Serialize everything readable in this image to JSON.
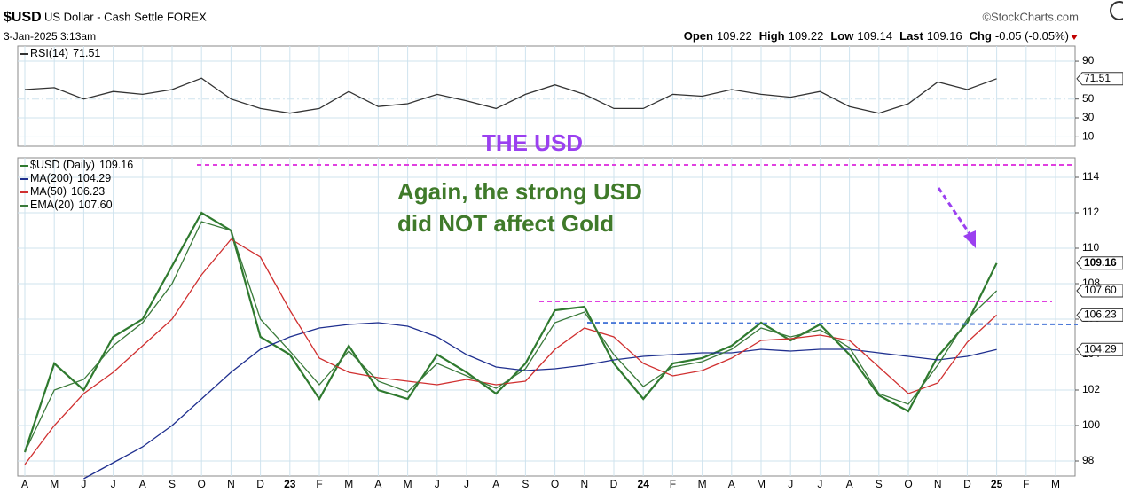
{
  "header": {
    "symbol": "$USD",
    "name": "US Dollar - Cash Settle FOREX",
    "date": "3-Jan-2025 3:13am",
    "source": "©StockCharts.com",
    "quote": [
      {
        "label": "Open",
        "value": "109.22"
      },
      {
        "label": "High",
        "value": "109.22"
      },
      {
        "label": "Low",
        "value": "109.14"
      },
      {
        "label": "Last",
        "value": "109.16"
      },
      {
        "label": "Chg",
        "value": "-0.05 (-0.05%)"
      }
    ]
  },
  "chart_data": [
    {
      "type": "line",
      "panel": "rsi",
      "categories": [
        "A",
        "M",
        "J",
        "J",
        "A",
        "S",
        "O",
        "N",
        "D",
        "23",
        "F",
        "M",
        "A",
        "M",
        "J",
        "J",
        "A",
        "S",
        "O",
        "N",
        "D",
        "24",
        "F",
        "M",
        "A",
        "M",
        "J",
        "J",
        "A",
        "S",
        "O",
        "N",
        "D",
        "25",
        "F",
        "M"
      ],
      "series": [
        {
          "name": "RSI(14)",
          "color": "#333333",
          "values": [
            60,
            62,
            50,
            58,
            55,
            60,
            72,
            50,
            40,
            35,
            40,
            58,
            42,
            45,
            55,
            48,
            40,
            55,
            65,
            55,
            40,
            40,
            55,
            53,
            60,
            55,
            52,
            58,
            42,
            35,
            45,
            68,
            60,
            71.51,
            null,
            null
          ],
          "value_labels": [
            null,
            null,
            null,
            null,
            null,
            null,
            null,
            null,
            null,
            null,
            null,
            null,
            null,
            null,
            null,
            null,
            null,
            null,
            null,
            null,
            null,
            null,
            null,
            null,
            null,
            null,
            null,
            null,
            null,
            null,
            null,
            null,
            null,
            "71.51",
            null,
            null
          ]
        }
      ],
      "ylim": [
        0,
        106
      ],
      "yticks": [
        10,
        30,
        50,
        90
      ],
      "grid": true
    },
    {
      "type": "line",
      "panel": "price",
      "title": "THE USD",
      "annotations": [
        "Again, the strong USD",
        "did NOT affect Gold"
      ],
      "categories": [
        "A",
        "M",
        "J",
        "J",
        "A",
        "S",
        "O",
        "N",
        "D",
        "23",
        "F",
        "M",
        "A",
        "M",
        "J",
        "J",
        "A",
        "S",
        "O",
        "N",
        "D",
        "24",
        "F",
        "M",
        "A",
        "M",
        "J",
        "J",
        "A",
        "S",
        "O",
        "N",
        "D",
        "25",
        "F",
        "M"
      ],
      "series": [
        {
          "name": "$USD (Daily)",
          "color": "#2f7a2f",
          "values": [
            98.5,
            103.5,
            102,
            105,
            106,
            109,
            112,
            111,
            105,
            104,
            101.5,
            104.5,
            102,
            101.5,
            104,
            103,
            101.8,
            103.5,
            106.5,
            106.7,
            103.5,
            101.5,
            103.5,
            103.8,
            104.5,
            105.8,
            104.8,
            105.7,
            104,
            101.7,
            100.8,
            103.9,
            105.8,
            109.16,
            null,
            null
          ],
          "value_labels": [
            null,
            null,
            null,
            null,
            null,
            null,
            null,
            null,
            null,
            null,
            null,
            null,
            null,
            null,
            null,
            null,
            null,
            null,
            null,
            null,
            null,
            null,
            null,
            null,
            null,
            null,
            null,
            null,
            null,
            null,
            null,
            null,
            null,
            "109.16",
            null,
            null
          ]
        },
        {
          "name": "MA(200)",
          "color": "#1f2f8f",
          "values": [
            null,
            null,
            97,
            97.9,
            98.8,
            100,
            101.5,
            103,
            104.3,
            105,
            105.5,
            105.7,
            105.8,
            105.6,
            105,
            104,
            103.3,
            103.1,
            103.2,
            103.4,
            103.7,
            103.9,
            104,
            104.1,
            104.1,
            104.3,
            104.2,
            104.3,
            104.3,
            104.1,
            103.9,
            103.7,
            103.9,
            104.29,
            null,
            null
          ],
          "value_labels": [
            null,
            null,
            null,
            null,
            null,
            null,
            null,
            null,
            null,
            null,
            null,
            null,
            null,
            null,
            null,
            null,
            null,
            null,
            null,
            null,
            null,
            null,
            null,
            null,
            null,
            null,
            null,
            null,
            null,
            null,
            null,
            null,
            null,
            "104.29",
            null,
            null
          ]
        },
        {
          "name": "MA(50)",
          "color": "#d03030",
          "values": [
            97.8,
            100,
            101.8,
            103,
            104.5,
            106,
            108.5,
            110.5,
            109.5,
            106.5,
            103.8,
            103,
            102.7,
            102.5,
            102.3,
            102.6,
            102.3,
            102.5,
            104.3,
            105.5,
            105,
            103.5,
            102.8,
            103.1,
            103.8,
            104.8,
            104.9,
            105.1,
            104.8,
            103.3,
            101.8,
            102.4,
            104.7,
            106.23,
            null,
            null
          ],
          "value_labels": [
            null,
            null,
            null,
            null,
            null,
            null,
            null,
            null,
            null,
            null,
            null,
            null,
            null,
            null,
            null,
            null,
            null,
            null,
            null,
            null,
            null,
            null,
            null,
            null,
            null,
            null,
            null,
            null,
            null,
            null,
            null,
            null,
            null,
            "106.23",
            null,
            null
          ]
        },
        {
          "name": "EMA(20)",
          "color": "#3a7a3a",
          "values": [
            98.5,
            102,
            102.6,
            104.5,
            105.8,
            108,
            111.5,
            111,
            106,
            104.2,
            102.3,
            104.2,
            102.5,
            101.9,
            103.5,
            102.8,
            102.1,
            103.2,
            105.8,
            106.4,
            104,
            102.2,
            103.3,
            103.6,
            104.3,
            105.5,
            105,
            105.4,
            104.4,
            101.8,
            101.2,
            103.4,
            106,
            107.6,
            null,
            null
          ],
          "value_labels": [
            null,
            null,
            null,
            null,
            null,
            null,
            null,
            null,
            null,
            null,
            null,
            null,
            null,
            null,
            null,
            null,
            null,
            null,
            null,
            null,
            null,
            null,
            null,
            null,
            null,
            null,
            null,
            null,
            null,
            null,
            null,
            null,
            null,
            "107.60",
            null,
            null
          ]
        }
      ],
      "ylim": [
        97.15,
        115.1
      ],
      "yticks": [
        98,
        100,
        102,
        104,
        106,
        108,
        110,
        112,
        114
      ],
      "grid": true
    }
  ]
}
